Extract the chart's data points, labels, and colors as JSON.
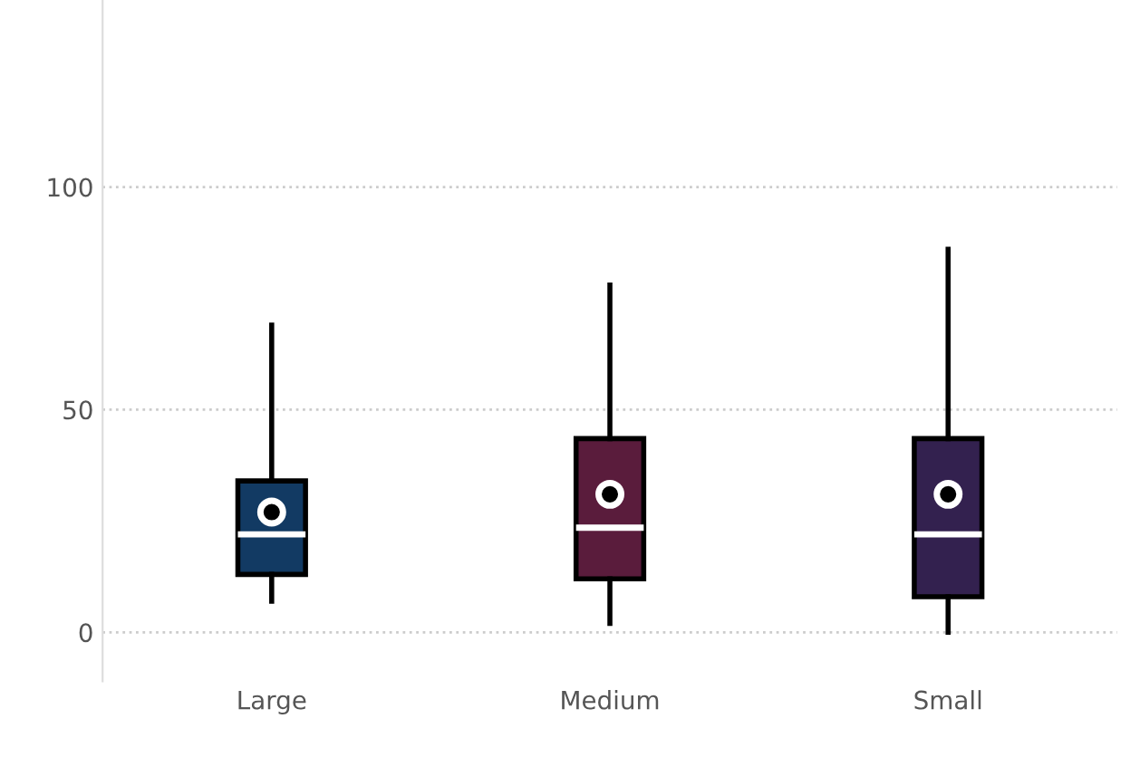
{
  "chart_data": {
    "type": "box",
    "categories": [
      "Large",
      "Medium",
      "Small"
    ],
    "boxes": [
      {
        "low": 7,
        "q1": 13,
        "median": 22,
        "q3": 34,
        "high": 69,
        "mean": 27
      },
      {
        "low": 2,
        "q1": 12,
        "median": 23.5,
        "q3": 43.5,
        "high": 78,
        "mean": 31
      },
      {
        "low": 0,
        "q1": 8,
        "median": 22,
        "q3": 43.5,
        "high": 86,
        "mean": 31
      }
    ],
    "colors": [
      "#123a63",
      "#5a1c3c",
      "#33214f"
    ],
    "ylim": [
      -11,
      142
    ],
    "yticks": [
      0,
      50,
      100
    ],
    "grid": "y"
  }
}
